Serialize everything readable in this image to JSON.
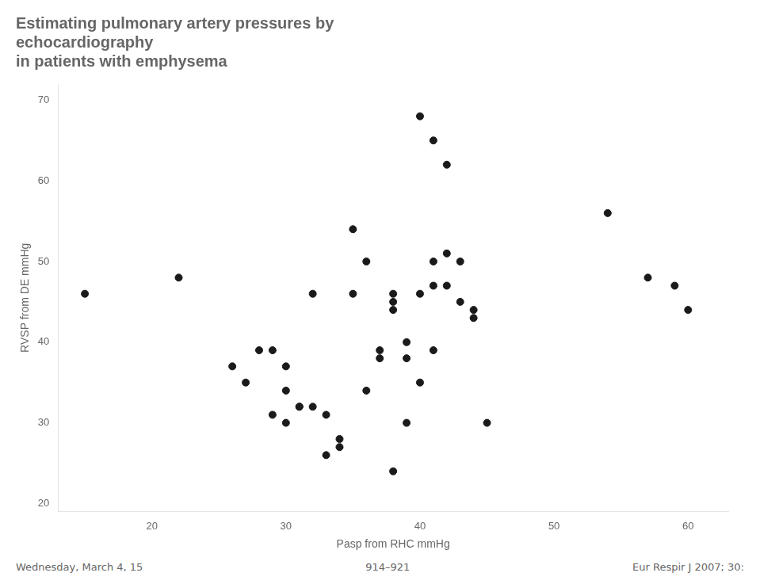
{
  "chart_data": {
    "type": "scatter",
    "title": [
      "Estimating pulmonary artery pressures by",
      "echocardiography",
      "in patients with emphysema"
    ],
    "x_label": "Pasp from RHC mmHg",
    "y_label": "RVSP from DE mmHg",
    "x": [
      15,
      22,
      26,
      27,
      28,
      29,
      29,
      30,
      30,
      30,
      31,
      31,
      32,
      32,
      33,
      33,
      34,
      34,
      35,
      35,
      36,
      36,
      37,
      37,
      38,
      38,
      38,
      38,
      39,
      39,
      39,
      40,
      40,
      40,
      41,
      41,
      41,
      41,
      42,
      42,
      42,
      43,
      43,
      44,
      44,
      45,
      54,
      57,
      59,
      60
    ],
    "values": [
      46,
      48,
      37,
      35,
      39,
      39,
      31,
      37,
      34,
      30,
      32,
      32,
      46,
      32,
      31,
      26,
      27,
      28,
      54,
      46,
      34,
      50,
      39,
      38,
      46,
      45,
      44,
      24,
      40,
      38,
      30,
      68,
      46,
      35,
      65,
      50,
      47,
      39,
      62,
      51,
      47,
      50,
      45,
      44,
      43,
      30,
      56,
      48,
      47,
      44
    ],
    "color": "#1a1a1a",
    "xlim": [
      13,
      63
    ],
    "ylim": [
      19,
      72
    ],
    "xticks": [
      20,
      30,
      40,
      50,
      60
    ],
    "yticks": [
      20,
      30,
      40,
      50,
      60,
      70
    ],
    "grid": false,
    "annotations": [
      "Wednesday, March 4, 15",
      "914–921",
      "Eur Respir J 2007; 30:"
    ]
  }
}
